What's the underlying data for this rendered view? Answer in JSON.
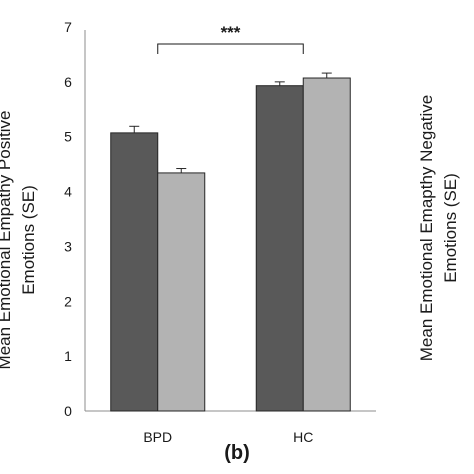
{
  "chart_data": {
    "type": "bar",
    "panel_label": "(b)",
    "categories": [
      "BPD",
      "HC"
    ],
    "series": [
      {
        "values": [
          5.07,
          5.93
        ],
        "errors": [
          0.12,
          0.07
        ],
        "color": "#595959"
      },
      {
        "values": [
          4.34,
          6.07
        ],
        "errors": [
          0.08,
          0.09
        ],
        "color": "#b3b3b3"
      }
    ],
    "ylabel_left": [
      "Mean Emotional Empathy Positive",
      "Emotions (SE)"
    ],
    "ylabel_right": [
      "Mean Emotional Emapthy Negative",
      "Emotions (SE)"
    ],
    "xlabel": "",
    "ylim": [
      0,
      7
    ],
    "yticks": [
      0,
      1,
      2,
      3,
      4,
      5,
      6,
      7
    ],
    "grid": false,
    "significance": {
      "label": "***",
      "between": [
        "BPD",
        "HC"
      ]
    }
  }
}
